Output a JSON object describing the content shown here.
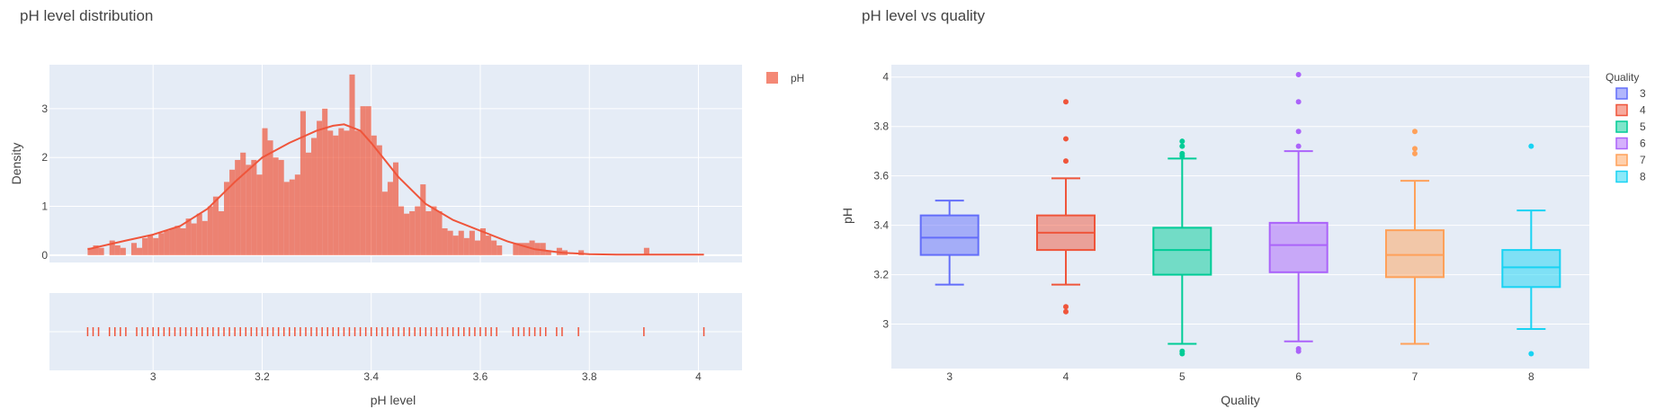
{
  "colors": {
    "plot_bg": "#E5ECF6",
    "grid": "#FFFFFF",
    "hist": "#EF553B",
    "quality": [
      "#636EFA",
      "#EF553B",
      "#00CC96",
      "#AB63FA",
      "#FFA15A",
      "#19D3F3"
    ]
  },
  "chart_data": [
    {
      "type": "histogram",
      "title": "pH level distribution",
      "xlabel": "pH level",
      "ylabel": "Density",
      "xlim": [
        2.81,
        4.08
      ],
      "ylim": [
        -0.15,
        3.9
      ],
      "x_ticks": [
        "3",
        "3.2",
        "3.4",
        "3.6",
        "3.8",
        "4"
      ],
      "y_ticks": [
        "0",
        "1",
        "2",
        "3"
      ],
      "legend": {
        "position": "right",
        "entries": [
          "pH"
        ]
      },
      "bin_width": 0.01,
      "bins": [
        [
          2.88,
          0.15
        ],
        [
          2.89,
          0.2
        ],
        [
          2.9,
          0.15
        ],
        [
          2.92,
          0.3
        ],
        [
          2.93,
          0.2
        ],
        [
          2.94,
          0.15
        ],
        [
          2.96,
          0.25
        ],
        [
          2.97,
          0.15
        ],
        [
          2.98,
          0.35
        ],
        [
          2.99,
          0.4
        ],
        [
          3.0,
          0.35
        ],
        [
          3.01,
          0.45
        ],
        [
          3.02,
          0.5
        ],
        [
          3.03,
          0.55
        ],
        [
          3.04,
          0.6
        ],
        [
          3.05,
          0.55
        ],
        [
          3.06,
          0.75
        ],
        [
          3.07,
          0.65
        ],
        [
          3.08,
          0.85
        ],
        [
          3.09,
          0.7
        ],
        [
          3.1,
          1.0
        ],
        [
          3.11,
          1.2
        ],
        [
          3.12,
          0.9
        ],
        [
          3.13,
          1.5
        ],
        [
          3.14,
          1.75
        ],
        [
          3.15,
          1.95
        ],
        [
          3.16,
          2.1
        ],
        [
          3.17,
          1.85
        ],
        [
          3.18,
          1.95
        ],
        [
          3.19,
          1.65
        ],
        [
          3.2,
          2.6
        ],
        [
          3.21,
          2.35
        ],
        [
          3.22,
          2.0
        ],
        [
          3.23,
          1.95
        ],
        [
          3.24,
          1.5
        ],
        [
          3.25,
          1.55
        ],
        [
          3.26,
          1.65
        ],
        [
          3.27,
          2.95
        ],
        [
          3.28,
          2.1
        ],
        [
          3.29,
          2.4
        ],
        [
          3.3,
          2.75
        ],
        [
          3.31,
          3.0
        ],
        [
          3.32,
          2.55
        ],
        [
          3.33,
          2.45
        ],
        [
          3.34,
          2.6
        ],
        [
          3.35,
          2.55
        ],
        [
          3.36,
          3.7
        ],
        [
          3.37,
          2.55
        ],
        [
          3.38,
          3.05
        ],
        [
          3.39,
          3.05
        ],
        [
          3.4,
          2.45
        ],
        [
          3.41,
          2.25
        ],
        [
          3.42,
          1.3
        ],
        [
          3.43,
          1.5
        ],
        [
          3.44,
          1.9
        ],
        [
          3.45,
          1.0
        ],
        [
          3.46,
          0.85
        ],
        [
          3.47,
          0.9
        ],
        [
          3.48,
          1.0
        ],
        [
          3.49,
          1.45
        ],
        [
          3.5,
          0.9
        ],
        [
          3.51,
          1.0
        ],
        [
          3.52,
          0.9
        ],
        [
          3.53,
          0.55
        ],
        [
          3.54,
          0.5
        ],
        [
          3.55,
          0.4
        ],
        [
          3.56,
          0.5
        ],
        [
          3.57,
          0.35
        ],
        [
          3.58,
          0.5
        ],
        [
          3.59,
          0.3
        ],
        [
          3.6,
          0.55
        ],
        [
          3.61,
          0.4
        ],
        [
          3.62,
          0.3
        ],
        [
          3.63,
          0.2
        ],
        [
          3.66,
          0.25
        ],
        [
          3.67,
          0.25
        ],
        [
          3.68,
          0.25
        ],
        [
          3.69,
          0.3
        ],
        [
          3.7,
          0.25
        ],
        [
          3.71,
          0.25
        ],
        [
          3.72,
          0.1
        ],
        [
          3.74,
          0.15
        ],
        [
          3.75,
          0.1
        ],
        [
          3.78,
          0.1
        ],
        [
          3.9,
          0.15
        ]
      ],
      "kde": {
        "x": [
          2.88,
          2.95,
          3.0,
          3.05,
          3.1,
          3.15,
          3.2,
          3.25,
          3.3,
          3.33,
          3.35,
          3.38,
          3.4,
          3.45,
          3.5,
          3.55,
          3.6,
          3.65,
          3.7,
          3.75,
          3.8,
          3.85,
          3.9,
          3.95,
          4.01
        ],
        "y": [
          0.12,
          0.3,
          0.42,
          0.6,
          0.95,
          1.5,
          2.0,
          2.3,
          2.55,
          2.65,
          2.68,
          2.55,
          2.3,
          1.6,
          1.05,
          0.72,
          0.5,
          0.28,
          0.12,
          0.05,
          0.02,
          0.01,
          0.01,
          0.01,
          0.01
        ]
      },
      "rug_x": [
        2.88,
        2.89,
        2.9,
        2.92,
        2.93,
        2.94,
        2.95,
        2.97,
        2.98,
        2.99,
        3.0,
        3.01,
        3.02,
        3.03,
        3.04,
        3.05,
        3.06,
        3.07,
        3.08,
        3.09,
        3.1,
        3.11,
        3.12,
        3.13,
        3.14,
        3.15,
        3.16,
        3.17,
        3.18,
        3.19,
        3.2,
        3.21,
        3.22,
        3.23,
        3.24,
        3.25,
        3.26,
        3.27,
        3.28,
        3.29,
        3.3,
        3.31,
        3.32,
        3.33,
        3.34,
        3.35,
        3.36,
        3.37,
        3.38,
        3.39,
        3.4,
        3.41,
        3.42,
        3.43,
        3.44,
        3.45,
        3.46,
        3.47,
        3.48,
        3.49,
        3.5,
        3.51,
        3.52,
        3.53,
        3.54,
        3.55,
        3.56,
        3.57,
        3.58,
        3.59,
        3.6,
        3.61,
        3.62,
        3.63,
        3.66,
        3.67,
        3.68,
        3.69,
        3.7,
        3.71,
        3.72,
        3.74,
        3.75,
        3.78,
        3.9,
        4.01
      ]
    },
    {
      "type": "box",
      "title": "pH level vs quality",
      "xlabel": "Quality",
      "ylabel": "pH",
      "ylim": [
        2.82,
        4.05
      ],
      "y_ticks": [
        "3",
        "3.2",
        "3.4",
        "3.6",
        "3.8",
        "4"
      ],
      "legend": {
        "title": "Quality",
        "position": "top-right"
      },
      "categories": [
        "3",
        "4",
        "5",
        "6",
        "7",
        "8"
      ],
      "boxes": [
        {
          "name": "3",
          "lower_fence": 3.16,
          "q1": 3.28,
          "median": 3.35,
          "q3": 3.44,
          "upper_fence": 3.5,
          "outliers": []
        },
        {
          "name": "4",
          "lower_fence": 3.16,
          "q1": 3.3,
          "median": 3.37,
          "q3": 3.44,
          "upper_fence": 3.59,
          "outliers": [
            3.9,
            3.75,
            3.66,
            3.07,
            3.05
          ]
        },
        {
          "name": "5",
          "lower_fence": 2.92,
          "q1": 3.2,
          "median": 3.3,
          "q3": 3.39,
          "upper_fence": 3.67,
          "outliers": [
            3.74,
            3.72,
            3.69,
            3.68,
            2.89,
            2.88
          ]
        },
        {
          "name": "6",
          "lower_fence": 2.93,
          "q1": 3.21,
          "median": 3.32,
          "q3": 3.41,
          "upper_fence": 3.7,
          "outliers": [
            4.01,
            3.9,
            3.78,
            3.72,
            2.9,
            2.89
          ]
        },
        {
          "name": "7",
          "lower_fence": 2.92,
          "q1": 3.19,
          "median": 3.28,
          "q3": 3.38,
          "upper_fence": 3.58,
          "outliers": [
            3.78,
            3.71,
            3.69
          ]
        },
        {
          "name": "8",
          "lower_fence": 2.98,
          "q1": 3.15,
          "median": 3.23,
          "q3": 3.3,
          "upper_fence": 3.46,
          "outliers": [
            3.72,
            2.88
          ]
        }
      ]
    }
  ]
}
